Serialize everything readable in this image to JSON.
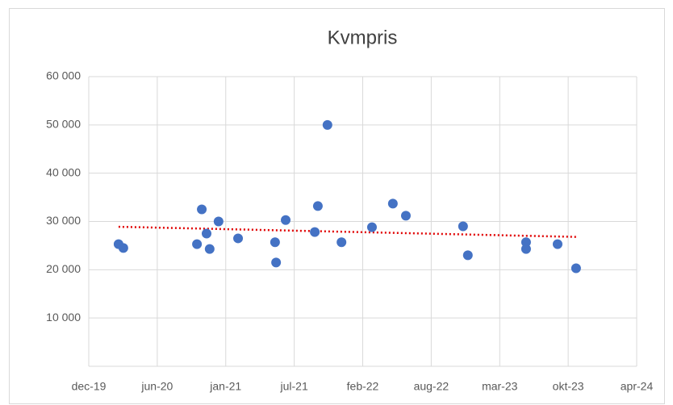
{
  "chart_data": {
    "type": "scatter",
    "title": "Kvmpris",
    "x": [
      43887,
      43901,
      44116,
      44130,
      44144,
      44153,
      44179,
      44236,
      44344,
      44347,
      44375,
      44460,
      44469,
      44497,
      44538,
      44627,
      44688,
      44726,
      44893,
      44907,
      45077,
      45077,
      45169,
      45223
    ],
    "values": [
      25300,
      24500,
      25300,
      32500,
      27500,
      24300,
      30000,
      26500,
      25700,
      21500,
      30300,
      27800,
      33200,
      50000,
      25700,
      28800,
      33700,
      31200,
      29000,
      23000,
      25700,
      24300,
      25300,
      20300
    ],
    "color": "#4472c4",
    "trendline": {
      "x": [
        43887,
        45223
      ],
      "values": [
        28900,
        26800
      ],
      "color": "#e00000"
    },
    "xlim": [
      43800,
      45400
    ],
    "xticks": [
      {
        "value": 43800,
        "label": "dec-19"
      },
      {
        "value": 44000,
        "label": "jun-20"
      },
      {
        "value": 44200,
        "label": "jan-21"
      },
      {
        "value": 44400,
        "label": "jul-21"
      },
      {
        "value": 44600,
        "label": "feb-22"
      },
      {
        "value": 44800,
        "label": "aug-22"
      },
      {
        "value": 45000,
        "label": "mar-23"
      },
      {
        "value": 45200,
        "label": "okt-23"
      },
      {
        "value": 45400,
        "label": "apr-24"
      }
    ],
    "ylim": [
      0,
      60000
    ],
    "yticks": [
      {
        "value": 10000,
        "label": "10 000"
      },
      {
        "value": 20000,
        "label": "20 000"
      },
      {
        "value": 30000,
        "label": "30 000"
      },
      {
        "value": 40000,
        "label": "40 000"
      },
      {
        "value": 50000,
        "label": "50 000"
      },
      {
        "value": 60000,
        "label": "60 000"
      }
    ],
    "grid": true
  }
}
